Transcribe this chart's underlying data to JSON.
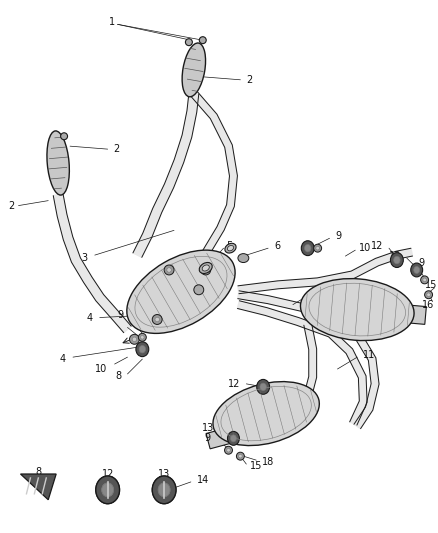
{
  "bg_color": "#ffffff",
  "line_color": "#1a1a1a",
  "label_color": "#111111",
  "fig_width": 4.38,
  "fig_height": 5.33,
  "dpi": 100,
  "gray_light": "#c8c8c8",
  "gray_mid": "#888888",
  "gray_dark": "#444444",
  "gray_comp": "#b0b0b0"
}
